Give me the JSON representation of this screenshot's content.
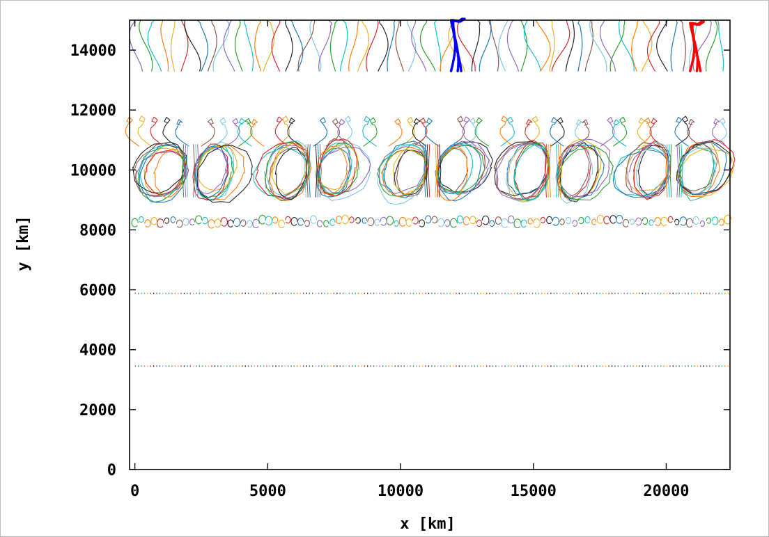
{
  "chart_data": {
    "type": "line",
    "xlabel": "x [km]",
    "ylabel": "y [km]",
    "xlim": [
      -200,
      22400
    ],
    "ylim": [
      0,
      15000
    ],
    "x_ticks": [
      "0",
      "5000",
      "10000",
      "15000",
      "20000"
    ],
    "y_ticks": [
      "0",
      "2000",
      "4000",
      "6000",
      "8000",
      "10000",
      "12000",
      "14000"
    ],
    "x_tick_values": [
      0,
      5000,
      10000,
      15000,
      20000
    ],
    "y_tick_values": [
      0,
      2000,
      4000,
      6000,
      8000,
      10000,
      12000,
      14000
    ],
    "grid": false,
    "legend": "none",
    "trajectory_palette": [
      "#9467bd",
      "#2ca02c",
      "#17becf",
      "#ff7f0e",
      "#e6b422",
      "#d62728",
      "#222222",
      "#1f77b4",
      "#8c564b",
      "#7ec8e3"
    ],
    "bands": [
      {
        "name": "top-band",
        "ymin": 13300,
        "ymax": 15000,
        "spacing_km": 355
      },
      {
        "name": "mid-arcs",
        "ymin": 10800,
        "ymax": 12100,
        "spacing_km": 470
      },
      {
        "name": "vortex-band",
        "ymin": 9000,
        "ymax": 10950,
        "centers_km": [
          2100,
          6700,
          11200,
          15750,
          20300
        ]
      },
      {
        "name": "small-loops",
        "ymin": 8150,
        "ymax": 8550,
        "spacing_km": 240
      },
      {
        "name": "dots-6000",
        "y": 5880,
        "spacing_km": 115
      },
      {
        "name": "dots-3500",
        "y": 3450,
        "spacing_km": 115
      }
    ],
    "highlighted": [
      {
        "color": "#0000ff",
        "x": 11900,
        "ymin": 13300,
        "ymax": 15000
      },
      {
        "color": "#ff0000",
        "x": 20900,
        "ymin": 13300,
        "ymax": 14900
      }
    ]
  }
}
